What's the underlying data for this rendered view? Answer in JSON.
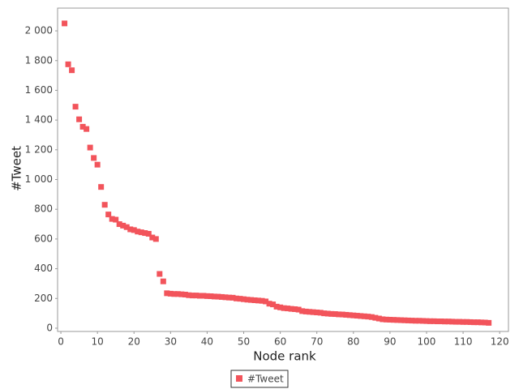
{
  "chart_data": {
    "type": "scatter",
    "x_label": "Node rank",
    "y_label": "#Tweet",
    "series": [
      {
        "name": "#Tweet",
        "color": "#f2545b",
        "x": [
          1,
          2,
          3,
          4,
          5,
          6,
          7,
          8,
          9,
          10,
          11,
          12,
          13,
          14,
          15,
          16,
          17,
          18,
          19,
          20,
          21,
          22,
          23,
          24,
          25,
          26,
          27,
          28,
          29,
          30,
          31,
          32,
          33,
          34,
          35,
          36,
          37,
          38,
          39,
          40,
          41,
          42,
          43,
          44,
          45,
          46,
          47,
          48,
          49,
          50,
          51,
          52,
          53,
          54,
          55,
          56,
          57,
          58,
          59,
          60,
          61,
          62,
          63,
          64,
          65,
          66,
          67,
          68,
          69,
          70,
          71,
          72,
          73,
          74,
          75,
          76,
          77,
          78,
          79,
          80,
          81,
          82,
          83,
          84,
          85,
          86,
          87,
          88,
          89,
          90,
          91,
          92,
          93,
          94,
          95,
          96,
          97,
          98,
          99,
          100,
          101,
          102,
          103,
          104,
          105,
          106,
          107,
          108,
          109,
          110,
          111,
          112,
          113,
          114,
          115,
          116,
          117
        ],
        "values": [
          2050,
          1775,
          1735,
          1490,
          1405,
          1355,
          1340,
          1215,
          1145,
          1100,
          950,
          830,
          765,
          735,
          730,
          700,
          690,
          680,
          665,
          660,
          650,
          645,
          640,
          635,
          610,
          600,
          365,
          315,
          235,
          232,
          230,
          230,
          228,
          226,
          222,
          220,
          220,
          218,
          218,
          216,
          215,
          213,
          212,
          210,
          208,
          206,
          205,
          200,
          198,
          195,
          192,
          190,
          188,
          186,
          184,
          180,
          165,
          160,
          145,
          140,
          135,
          133,
          130,
          128,
          125,
          115,
          112,
          110,
          108,
          106,
          104,
          100,
          98,
          96,
          95,
          93,
          92,
          90,
          88,
          86,
          84,
          82,
          80,
          78,
          75,
          70,
          65,
          60,
          58,
          57,
          56,
          55,
          54,
          53,
          52,
          51,
          50,
          50,
          49,
          48,
          47,
          47,
          46,
          46,
          45,
          45,
          44,
          43,
          43,
          42,
          42,
          41,
          40,
          40,
          39,
          38,
          36
        ]
      }
    ],
    "xlim": [
      -0.9,
      122.4
    ],
    "xticks": [
      0,
      10,
      20,
      30,
      40,
      50,
      60,
      70,
      80,
      90,
      100,
      110,
      120
    ],
    "ylim": [
      -22,
      2153
    ],
    "yticks": [
      0,
      200,
      400,
      600,
      800,
      {
        "value": 1000,
        "label": "1 000"
      },
      {
        "value": 1200,
        "label": "1 200"
      },
      {
        "value": 1400,
        "label": "1 400"
      },
      {
        "value": 1600,
        "label": "1 600"
      },
      {
        "value": 1800,
        "label": "1 800"
      },
      {
        "value": 2000,
        "label": "2 000"
      }
    ],
    "grid": false,
    "legend": "bottom"
  }
}
